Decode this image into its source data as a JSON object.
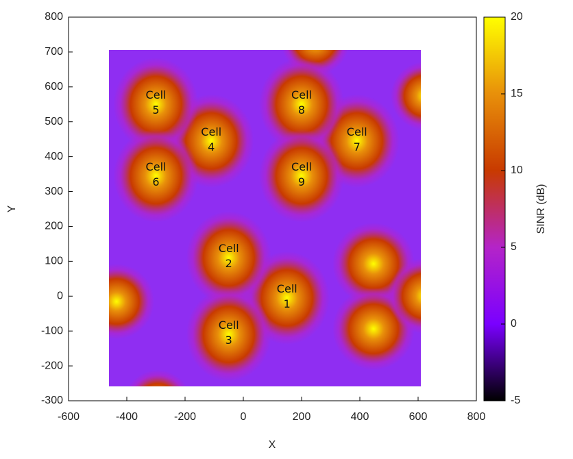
{
  "chart_data": {
    "type": "heatmap",
    "xlabel": "X",
    "ylabel": "Y",
    "colorbar_label": "SINR (dB)",
    "xlim": [
      -600,
      800
    ],
    "xticks": [
      -600,
      -400,
      -200,
      0,
      200,
      400,
      600,
      800
    ],
    "ylim": [
      -300,
      800
    ],
    "yticks": [
      -300,
      -200,
      -100,
      0,
      100,
      200,
      300,
      400,
      500,
      600,
      700,
      800
    ],
    "zlim": [
      -5,
      20
    ],
    "zticks": [
      -5,
      0,
      5,
      10,
      15,
      20
    ],
    "colormap": [
      "#000000",
      "#7a00ff",
      "#b424c8",
      "#c83a00",
      "#e8900a",
      "#ffff00"
    ],
    "cells": [
      {
        "label": "Cell 1",
        "x": 150,
        "y": -5
      },
      {
        "label": "Cell 2",
        "x": -50,
        "y": 110
      },
      {
        "label": "Cell 3",
        "x": -50,
        "y": -110
      },
      {
        "label": "Cell 4",
        "x": -110,
        "y": 445
      },
      {
        "label": "Cell 5",
        "x": -300,
        "y": 550
      },
      {
        "label": "Cell 6",
        "x": -300,
        "y": 345
      },
      {
        "label": "Cell 7",
        "x": 390,
        "y": 445
      },
      {
        "label": "Cell 8",
        "x": 200,
        "y": 550
      },
      {
        "label": "Cell 9",
        "x": 200,
        "y": 345
      }
    ]
  }
}
